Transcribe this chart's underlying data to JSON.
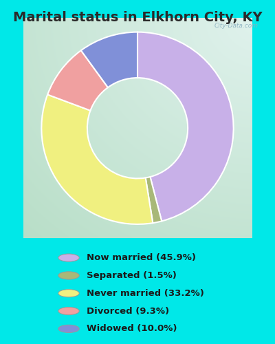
{
  "title": "Marital status in Elkhorn City, KY",
  "segments": [
    {
      "label": "Now married (45.9%)",
      "value": 45.9,
      "color": "#c8b0e8"
    },
    {
      "label": "Separated (1.5%)",
      "value": 1.5,
      "color": "#a8b878"
    },
    {
      "label": "Never married (33.2%)",
      "value": 33.2,
      "color": "#f0f080"
    },
    {
      "label": "Divorced (9.3%)",
      "value": 9.3,
      "color": "#f0a0a0"
    },
    {
      "label": "Widowed (10.0%)",
      "value": 10.0,
      "color": "#8090d8"
    }
  ],
  "legend_colors": [
    "#c8b0e8",
    "#a8b878",
    "#f0f080",
    "#f0a0a0",
    "#8090d8"
  ],
  "legend_labels": [
    "Now married (45.9%)",
    "Separated (1.5%)",
    "Never married (33.2%)",
    "Divorced (9.3%)",
    "Widowed (10.0%)"
  ],
  "outer_bg": "#00e8e8",
  "title_fontsize": 14,
  "watermark": "City-Data.com",
  "startangle": 90
}
